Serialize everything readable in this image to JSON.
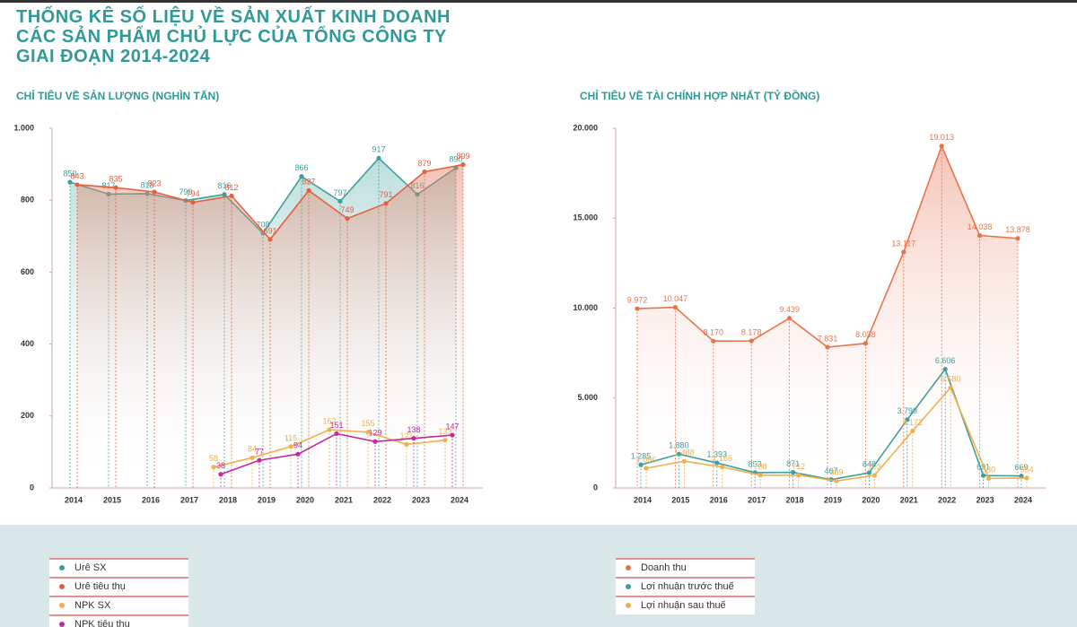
{
  "page": {
    "title": "THỐNG KÊ SỐ LIỆU VỀ SẢN XUẤT KINH DOANH CÁC SẢN PHẨM CHỦ LỰC CỦA TỔNG CÔNG TY GIAI ĐOẠN 2014-2024"
  },
  "chart_data": [
    {
      "type": "line",
      "title": "CHỈ TIÊU VỀ SẢN LƯỢNG (NGHÌN TẤN)",
      "categories": [
        "2014",
        "2015",
        "2016",
        "2017",
        "2018",
        "2019",
        "2020",
        "2021",
        "2022",
        "2023",
        "2024"
      ],
      "ylim": [
        0,
        1000
      ],
      "yticks": [
        0,
        200,
        400,
        600,
        800,
        {
          "value": 1000,
          "label": "1.000"
        }
      ],
      "series": [
        {
          "name": "Urê SX",
          "color": "#3f9f9c",
          "area": true,
          "values": [
            850,
            817,
            818,
            799,
            816,
            708,
            866,
            797,
            917,
            816,
            890
          ]
        },
        {
          "name": "Urê tiêu thụ",
          "color": "#e5603f",
          "area": true,
          "values": [
            843,
            835,
            823,
            794,
            812,
            691,
            827,
            749,
            791,
            879,
            899
          ]
        },
        {
          "name": "NPK SX",
          "color": "#f0b04a",
          "values": [
            null,
            null,
            null,
            null,
            58,
            84,
            115,
            162,
            155,
            121,
            133
          ]
        },
        {
          "name": "NPK tiêu thụ",
          "color": "#c42a9c",
          "values": [
            null,
            null,
            null,
            null,
            38,
            77,
            94,
            151,
            129,
            138,
            147
          ]
        }
      ]
    },
    {
      "type": "line",
      "title": "CHỈ TIÊU VỀ TÀI CHÍNH HỢP NHẤT (TỶ ĐỒNG)",
      "categories": [
        "2014",
        "2015",
        "2016",
        "2017",
        "2018",
        "2019",
        "2020",
        "2021",
        "2022",
        "2023",
        "2024"
      ],
      "ylim": [
        0,
        20000
      ],
      "yticks": [
        0,
        {
          "value": 5000,
          "label": "5.000"
        },
        {
          "value": 10000,
          "label": "10.000"
        },
        {
          "value": 15000,
          "label": "15.000"
        },
        {
          "value": 20000,
          "label": "20.000"
        }
      ],
      "series": [
        {
          "name": "Doanh thu",
          "color": "#e8734a",
          "area": true,
          "values": [
            9972,
            10047,
            8170,
            8178,
            9439,
            7831,
            8038,
            13117,
            19013,
            14038,
            13878
          ],
          "value_labels": [
            "9.972",
            "10.047",
            "8.170",
            "8.178",
            "9.439",
            "7.831",
            "8.038",
            "13.117",
            "19.013",
            "14.038",
            "13.878"
          ]
        },
        {
          "name": "Lợi nhuận trước thuế",
          "color": "#3f9f9c",
          "values": [
            1285,
            1880,
            1393,
            853,
            871,
            467,
            848,
            3799,
            6606,
            691,
            669
          ],
          "value_labels": [
            "1.285",
            "1.880",
            "1.393",
            "853",
            "871",
            "467",
            "848",
            "3.799",
            "6.606",
            "691",
            "669"
          ]
        },
        {
          "name": "Lợi nhuận sau thuế",
          "color": "#f0b04a",
          "values": [
            1096,
            1488,
            1165,
            708,
            712,
            389,
            702,
            3172,
            5580,
            530,
            554
          ],
          "value_labels": [
            "1.096",
            "1.488",
            "1.165",
            "708",
            "712",
            "389",
            "702",
            "3.172",
            "5.580",
            "530",
            "554"
          ]
        }
      ]
    }
  ]
}
